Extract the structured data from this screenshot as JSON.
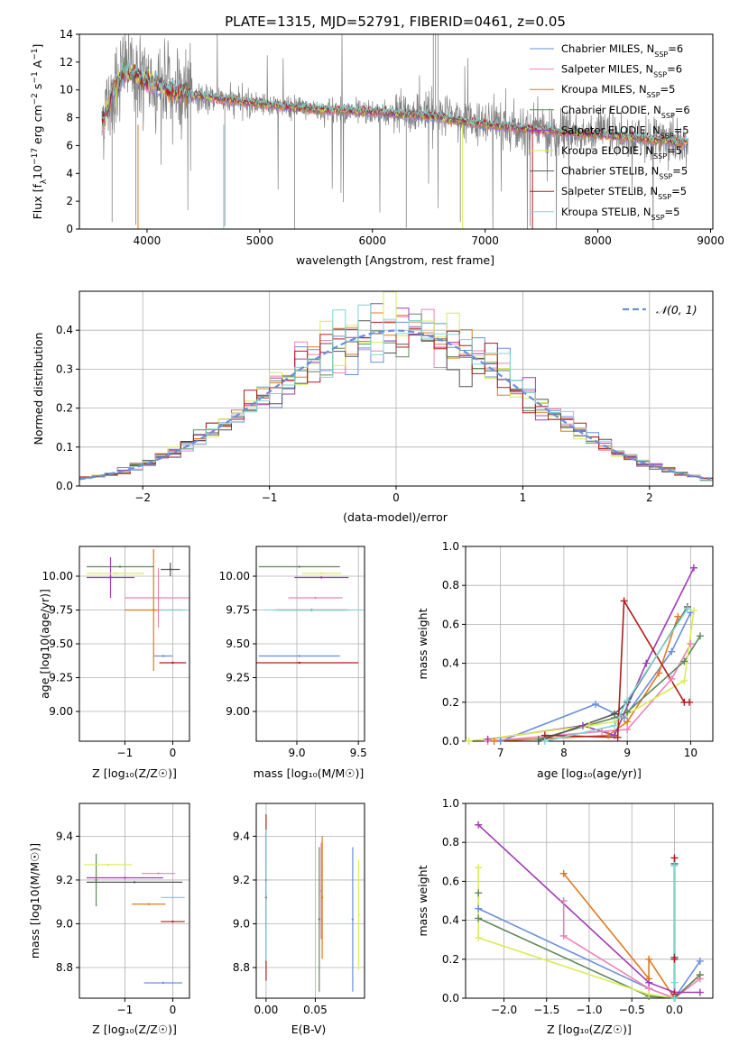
{
  "figure": {
    "title": "PLATE=1315, MJD=52791, FIBERID=0461, z=0.05"
  },
  "series_styles": [
    {
      "name": "Chabrier MILES",
      "nssp": "6",
      "color": "#6a8fdc"
    },
    {
      "name": "Salpeter MILES",
      "nssp": "6",
      "color": "#ee82b6"
    },
    {
      "name": "Kroupa MILES",
      "nssp": "5",
      "color": "#e07a1f"
    },
    {
      "name": "Chabrier ELODIE",
      "nssp": "6",
      "color": "#5e8a5a"
    },
    {
      "name": "Salpeter ELODIE",
      "nssp": "5",
      "color": "#a23bb4"
    },
    {
      "name": "Kroupa ELODIE",
      "nssp": "5",
      "color": "#d9ec55"
    },
    {
      "name": "Chabrier STELIB",
      "nssp": "5",
      "color": "#555555"
    },
    {
      "name": "Salpeter STELIB",
      "nssp": "5",
      "color": "#b01c1c"
    },
    {
      "name": "Kroupa STELIB",
      "nssp": "5",
      "color": "#7fd6d6"
    }
  ],
  "chart_data": [
    {
      "id": "spectrum",
      "type": "line",
      "xlabel": "wavelength [Angstrom, rest frame]",
      "ylabel": "Flux [f_λ 10^-17 erg cm^-2 s^-1 A^-1]",
      "xlim": [
        3400,
        9020
      ],
      "ylim": [
        0,
        14
      ],
      "xticks": [
        4000,
        5000,
        6000,
        7000,
        8000,
        9000
      ],
      "yticks": [
        0,
        2,
        4,
        6,
        8,
        10,
        12,
        14
      ],
      "legend_position": "right",
      "data_color": "#808080",
      "data_envelope": {
        "x": [
          3600,
          3800,
          4000,
          4200,
          4500,
          5000,
          5500,
          6000,
          6500,
          7000,
          7500,
          8000,
          8500,
          8800
        ],
        "y": [
          8.0,
          11.8,
          10.5,
          10.0,
          9.4,
          9.0,
          8.6,
          8.4,
          8.2,
          7.6,
          7.2,
          6.8,
          6.4,
          6.2
        ]
      },
      "model_envelope": {
        "x": [
          3600,
          3700,
          3800,
          4000,
          4200,
          4500,
          5000,
          5500,
          6000,
          6500,
          7000,
          7500,
          8000,
          8500,
          8800
        ],
        "y": [
          7.5,
          10.0,
          11.5,
          10.6,
          10.0,
          9.5,
          9.0,
          8.6,
          8.4,
          8.1,
          7.5,
          7.1,
          6.8,
          6.4,
          6.2
        ]
      }
    },
    {
      "id": "residual_histogram",
      "type": "line",
      "xlabel": "(data-model)/error",
      "ylabel": "Normed distribution",
      "xlim": [
        -2.5,
        2.5
      ],
      "ylim": [
        0,
        0.5
      ],
      "xticks": [
        -2,
        -1,
        0,
        1,
        2
      ],
      "yticks": [
        0.0,
        0.1,
        0.2,
        0.3,
        0.4
      ],
      "grid": true,
      "legend": [
        {
          "label": "N(0,1)",
          "style": "dashed",
          "color": "#6a8fdc"
        }
      ],
      "legend_position": "top-right",
      "reference_curve": "normal(0,1) pdf",
      "bin_width": 0.1,
      "bin_range": [
        -2.5,
        2.5
      ]
    },
    {
      "id": "age_vs_Z",
      "type": "scatter",
      "xlabel": "Z [log10(Z/Z☉)]",
      "ylabel": "age [log10(age/yr)]",
      "xlim": [
        -1.95,
        0.35
      ],
      "ylim": [
        8.78,
        10.22
      ],
      "xticks": [
        -1,
        0
      ],
      "yticks": [
        9.0,
        9.25,
        9.5,
        9.75,
        10.0
      ],
      "grid": true,
      "points": [
        {
          "series": "Chabrier MILES",
          "x": -0.2,
          "y": 9.41,
          "xerr": 0.2,
          "yerr": 0.0
        },
        {
          "series": "Salpeter MILES",
          "x": -0.3,
          "y": 9.84,
          "xerr": 0.7,
          "yerr": 0.22
        },
        {
          "series": "Kroupa MILES",
          "x": -0.4,
          "y": 9.75,
          "xerr": 0.6,
          "yerr": 0.45
        },
        {
          "series": "Chabrier ELODIE",
          "x": -1.1,
          "y": 10.07,
          "xerr": 0.7,
          "yerr": 0.0
        },
        {
          "series": "Salpeter ELODIE",
          "x": -1.3,
          "y": 9.99,
          "xerr": 0.5,
          "yerr": 0.15
        },
        {
          "series": "Kroupa ELODIE",
          "x": -1.2,
          "y": 10.02,
          "xerr": 0.6,
          "yerr": 0.0
        },
        {
          "series": "Chabrier STELIB",
          "x": -0.05,
          "y": 10.05,
          "xerr": 0.2,
          "yerr": 0.05
        },
        {
          "series": "Salpeter STELIB",
          "x": 0.0,
          "y": 9.36,
          "xerr": 0.28,
          "yerr": 0.0
        },
        {
          "series": "Kroupa STELIB",
          "x": 0.0,
          "y": 9.75,
          "xerr": 0.3,
          "yerr": 0.0
        }
      ]
    },
    {
      "id": "age_vs_mass",
      "type": "scatter",
      "xlabel": "mass [log10(M/M☉)]",
      "ylabel": "",
      "xlim": [
        8.67,
        9.55
      ],
      "ylim": [
        8.78,
        10.22
      ],
      "xticks": [
        9.0,
        9.5
      ],
      "yticks": [
        9.0,
        9.25,
        9.5,
        9.75,
        10.0
      ],
      "grid": true,
      "points": [
        {
          "series": "Chabrier MILES",
          "x": 9.02,
          "y": 9.41,
          "xerr": 0.33,
          "yerr": 0.0
        },
        {
          "series": "Salpeter MILES",
          "x": 9.15,
          "y": 9.84,
          "xerr": 0.22,
          "yerr": 0.0
        },
        {
          "series": "Kroupa MILES",
          "x": 9.12,
          "y": 9.75,
          "xerr": 0.28,
          "yerr": 0.0
        },
        {
          "series": "Chabrier ELODIE",
          "x": 9.02,
          "y": 10.07,
          "xerr": 0.33,
          "yerr": 0.0
        },
        {
          "series": "Salpeter ELODIE",
          "x": 9.2,
          "y": 9.99,
          "xerr": 0.22,
          "yerr": 0.0
        },
        {
          "series": "Kroupa ELODIE",
          "x": 9.2,
          "y": 10.02,
          "xerr": 0.16,
          "yerr": 0.0
        },
        {
          "series": "Chabrier STELIB",
          "x": 9.12,
          "y": 9.75,
          "xerr": 0.3,
          "yerr": 0.0
        },
        {
          "series": "Salpeter STELIB",
          "x": 9.02,
          "y": 9.36,
          "xerr": 0.48,
          "yerr": 0.0
        },
        {
          "series": "Kroupa STELIB",
          "x": 9.13,
          "y": 9.75,
          "xerr": 0.4,
          "yerr": 0.0
        }
      ]
    },
    {
      "id": "mass_weight_vs_age",
      "type": "line",
      "xlabel": "age [log10(age/yr)]",
      "ylabel": "mass weight",
      "xlim": [
        6.45,
        10.35
      ],
      "ylim": [
        0,
        1
      ],
      "xticks": [
        7,
        8,
        9,
        10
      ],
      "yticks": [
        0.0,
        0.2,
        0.4,
        0.6,
        0.8,
        1.0
      ],
      "grid": true,
      "series": [
        {
          "name": "Chabrier MILES",
          "x": [
            7.0,
            8.5,
            8.95,
            9.7,
            10.0
          ],
          "y": [
            0.0,
            0.19,
            0.12,
            0.46,
            0.66
          ]
        },
        {
          "name": "Salpeter MILES",
          "x": [
            6.8,
            8.6,
            9.0,
            9.7,
            10.0
          ],
          "y": [
            0.0,
            0.05,
            0.06,
            0.32,
            0.5
          ]
        },
        {
          "name": "Kroupa MILES",
          "x": [
            6.9,
            8.7,
            9.0,
            9.5,
            9.8
          ],
          "y": [
            0.0,
            0.03,
            0.1,
            0.35,
            0.64
          ]
        },
        {
          "name": "Chabrier ELODIE",
          "x": [
            7.6,
            8.8,
            9.0,
            9.9,
            10.15
          ],
          "y": [
            0.01,
            0.12,
            0.15,
            0.41,
            0.54
          ]
        },
        {
          "name": "Salpeter ELODIE",
          "x": [
            6.8,
            8.3,
            8.8,
            9.3,
            10.05
          ],
          "y": [
            0.01,
            0.08,
            0.03,
            0.4,
            0.89
          ]
        },
        {
          "name": "Kroupa ELODIE",
          "x": [
            6.5,
            8.4,
            8.8,
            9.9,
            10.05
          ],
          "y": [
            0.0,
            0.08,
            0.1,
            0.31,
            0.67
          ]
        },
        {
          "name": "Chabrier STELIB",
          "x": [
            7.6,
            8.8,
            9.0,
            9.95
          ],
          "y": [
            0.0,
            0.14,
            0.2,
            0.69
          ]
        },
        {
          "name": "Salpeter STELIB",
          "x": [
            7.7,
            8.85,
            8.95,
            9.9,
            9.98
          ],
          "y": [
            0.03,
            0.02,
            0.72,
            0.2,
            0.2
          ]
        },
        {
          "name": "Kroupa STELIB",
          "x": [
            7.7,
            8.8,
            9.0,
            9.95
          ],
          "y": [
            0.0,
            0.08,
            0.21,
            0.68
          ]
        }
      ]
    },
    {
      "id": "mass_vs_Z",
      "type": "scatter",
      "xlabel": "Z [log10(Z/Z☉)]",
      "ylabel": "mass [log10(M/M☉)]",
      "xlim": [
        -1.95,
        0.35
      ],
      "ylim": [
        8.66,
        9.55
      ],
      "xticks": [
        -1,
        0
      ],
      "yticks": [
        8.8,
        9.0,
        9.2,
        9.4
      ],
      "grid": true,
      "points": [
        {
          "series": "Chabrier MILES",
          "x": -0.2,
          "y": 8.73,
          "xerr": 0.4,
          "yerr": 0.0
        },
        {
          "series": "Salpeter MILES",
          "x": -0.3,
          "y": 9.23,
          "xerr": 0.35,
          "yerr": 0.0
        },
        {
          "series": "Kroupa MILES",
          "x": -0.5,
          "y": 9.09,
          "xerr": 0.35,
          "yerr": 0.0
        },
        {
          "series": "Chabrier ELODIE",
          "x": -1.6,
          "y": 9.2,
          "xerr": 0.0,
          "yerr": 0.12
        },
        {
          "series": "Salpeter ELODIE",
          "x": -1.0,
          "y": 9.21,
          "xerr": 0.8,
          "yerr": 0.0
        },
        {
          "series": "Kroupa ELODIE",
          "x": -1.35,
          "y": 9.27,
          "xerr": 0.5,
          "yerr": 0.0
        },
        {
          "series": "Chabrier STELIB",
          "x": -0.8,
          "y": 9.19,
          "xerr": 1.0,
          "yerr": 0.0
        },
        {
          "series": "Salpeter STELIB",
          "x": 0.0,
          "y": 9.01,
          "xerr": 0.25,
          "yerr": 0.0
        },
        {
          "series": "Kroupa STELIB",
          "x": 0.0,
          "y": 9.12,
          "xerr": 0.25,
          "yerr": 0.0
        }
      ]
    },
    {
      "id": "mass_vs_EBV",
      "type": "scatter",
      "xlabel": "E(B-V)",
      "ylabel": "",
      "xlim": [
        -0.01,
        0.1
      ],
      "ylim": [
        8.66,
        9.55
      ],
      "xticks": [
        0.0,
        0.05
      ],
      "yticks": [
        8.8,
        9.0,
        9.2,
        9.4
      ],
      "grid": true,
      "points": [
        {
          "series": "Chabrier MILES",
          "x": 0.088,
          "y": 9.02,
          "xerr": 0.0,
          "yerr": 0.33
        },
        {
          "series": "Salpeter MILES",
          "x": 0.056,
          "y": 9.15,
          "xerr": 0.0,
          "yerr": 0.22
        },
        {
          "series": "Kroupa MILES",
          "x": 0.057,
          "y": 9.12,
          "xerr": 0.0,
          "yerr": 0.28
        },
        {
          "series": "Chabrier ELODIE",
          "x": 0.054,
          "y": 9.02,
          "xerr": 0.0,
          "yerr": 0.33
        },
        {
          "series": "Salpeter ELODIE",
          "x": 0.0,
          "y": 9.2,
          "xerr": 0.0,
          "yerr": 0.22
        },
        {
          "series": "Kroupa ELODIE",
          "x": 0.094,
          "y": 9.04,
          "xerr": 0.0,
          "yerr": 0.25
        },
        {
          "series": "Chabrier STELIB",
          "x": 0.0,
          "y": 9.12,
          "xerr": 0.0,
          "yerr": 0.3
        },
        {
          "series": "Salpeter STELIB",
          "x": 0.0,
          "y": 9.12,
          "xerr": 0.0,
          "yerr": 0.38
        },
        {
          "series": "Kroupa STELIB",
          "x": 0.0,
          "y": 9.13,
          "xerr": 0.0,
          "yerr": 0.3
        }
      ]
    },
    {
      "id": "mass_weight_vs_Z",
      "type": "line",
      "xlabel": "Z [log10(Z/Z☉)]",
      "ylabel": "mass weight",
      "xlim": [
        -2.45,
        0.45
      ],
      "ylim": [
        0,
        1
      ],
      "xticks": [
        -2.0,
        -1.5,
        -1.0,
        -0.5,
        0.0
      ],
      "yticks": [
        0.0,
        0.2,
        0.4,
        0.6,
        0.8,
        1.0
      ],
      "grid": true,
      "series": [
        {
          "name": "Chabrier MILES",
          "x": [
            -2.3,
            -0.3,
            0.0,
            0.3
          ],
          "y": [
            0.46,
            0.05,
            0.0,
            0.19
          ]
        },
        {
          "name": "Salpeter MILES",
          "x": [
            -1.3,
            -1.3,
            -0.3,
            0.0,
            0.3
          ],
          "y": [
            0.5,
            0.32,
            0.05,
            0.0,
            0.1
          ]
        },
        {
          "name": "Kroupa MILES",
          "x": [
            -1.3,
            -0.3,
            -0.3,
            0.0,
            0.3
          ],
          "y": [
            0.64,
            0.1,
            0.2,
            0.0,
            0.12
          ]
        },
        {
          "name": "Chabrier ELODIE",
          "x": [
            -2.3,
            -2.3,
            -0.3,
            0.0,
            0.3
          ],
          "y": [
            0.54,
            0.41,
            0.01,
            0.0,
            0.12
          ]
        },
        {
          "name": "Salpeter ELODIE",
          "x": [
            -2.3,
            -0.3,
            0.0,
            0.3
          ],
          "y": [
            0.89,
            0.08,
            0.03,
            0.03
          ]
        },
        {
          "name": "Kroupa ELODIE",
          "x": [
            -2.3,
            -2.3,
            -0.3,
            0.0
          ],
          "y": [
            0.67,
            0.31,
            0.02,
            0.0
          ]
        },
        {
          "name": "Chabrier STELIB",
          "x": [
            0.0,
            0.0,
            0.0
          ],
          "y": [
            0.0,
            0.21,
            0.69
          ]
        },
        {
          "name": "Salpeter STELIB",
          "x": [
            0.0,
            0.0,
            0.0
          ],
          "y": [
            0.02,
            0.2,
            0.72
          ]
        },
        {
          "name": "Kroupa STELIB",
          "x": [
            0.0,
            0.0,
            0.0
          ],
          "y": [
            0.0,
            0.08,
            0.68
          ]
        }
      ]
    }
  ]
}
